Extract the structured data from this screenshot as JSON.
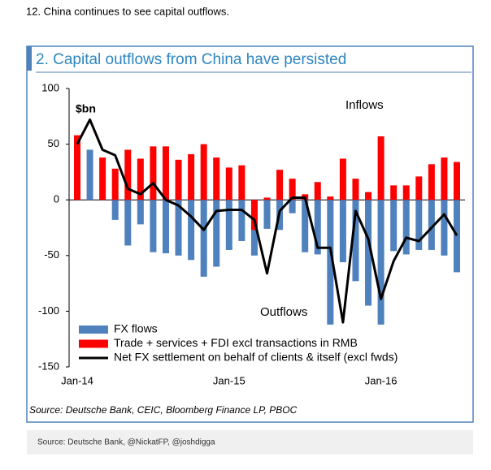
{
  "page_heading": "12. China continues to see capital outflows.",
  "chart_data": {
    "type": "bar-line",
    "title": "2.   Capital outflows from China have persisted",
    "y_unit_label": "$bn",
    "annotations": [
      "Inflows",
      "Outflows"
    ],
    "source": "Source: Deutsche Bank, CEIC, Bloomberg Finance LP, PBOC",
    "categories": [
      "Jan-14",
      null,
      null,
      null,
      null,
      null,
      null,
      null,
      null,
      null,
      null,
      null,
      "Jan-15",
      null,
      null,
      null,
      null,
      null,
      null,
      null,
      null,
      null,
      null,
      null,
      "Jan-16",
      null,
      null,
      null,
      null,
      null,
      null
    ],
    "series": [
      {
        "name": "FX flows",
        "color": "#4f81bd",
        "kind": "bar",
        "values": [
          0,
          45,
          0,
          -18,
          -41,
          -22,
          -47,
          -48,
          -50,
          -54,
          -69,
          -60,
          -45,
          -37,
          -50,
          -26,
          -27,
          -12,
          -47,
          -49,
          -112,
          -56,
          -73,
          -95,
          -112,
          -46,
          -49,
          -45,
          -45,
          -50,
          -65
        ]
      },
      {
        "name": "Trade + services + FDI excl transactions in RMB",
        "color": "#ff0000",
        "kind": "bar",
        "values": [
          58,
          0,
          38,
          28,
          45,
          37,
          48,
          48,
          36,
          41,
          50,
          38,
          29,
          31,
          -27,
          2,
          27,
          19,
          5,
          16,
          3,
          37,
          19,
          7,
          57,
          13,
          13,
          21,
          32,
          38,
          34
        ]
      },
      {
        "name": "Net FX settlement on behalf of clients & itself (excl fwds)",
        "color": "#000000",
        "kind": "line",
        "values": [
          50,
          72,
          45,
          40,
          10,
          5,
          15,
          0,
          -5,
          -15,
          -27,
          -10,
          -9,
          -9,
          -18,
          -66,
          -10,
          2,
          2,
          -43,
          -43,
          -110,
          -10,
          -35,
          -89,
          -55,
          -34,
          -37,
          -25,
          -13,
          -32
        ]
      }
    ],
    "ylim": [
      -150,
      100
    ],
    "yticks": [
      -150,
      -100,
      -50,
      0,
      50,
      100
    ]
  },
  "footer": "Source: Deutsche Bank, @NickatFP, @joshdigga"
}
